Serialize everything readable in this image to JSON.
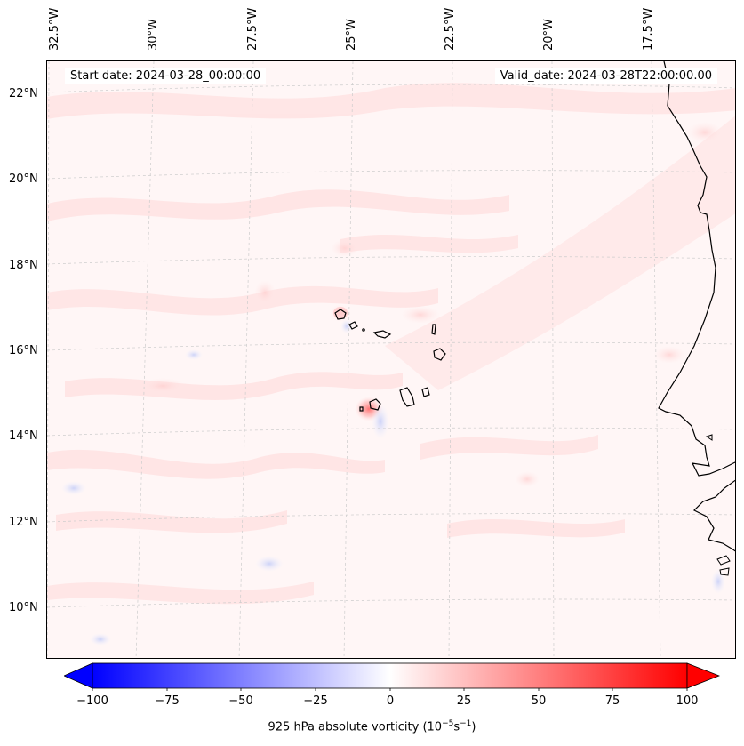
{
  "header": {
    "start_date": "Start date: 2024-03-28_00:00:00",
    "valid_date": "Valid_date: 2024-03-28T22:00:00.00"
  },
  "axes": {
    "longitude_labels": [
      "32.5°W",
      "30°W",
      "27.5°W",
      "25°W",
      "22.5°W",
      "20°W",
      "17.5°W"
    ],
    "latitude_labels": [
      "22°N",
      "20°N",
      "18°N",
      "16°N",
      "14°N",
      "12°N",
      "10°N"
    ]
  },
  "colorbar": {
    "label_prefix": "925 hPa absolute vorticity (10",
    "label_exp1": "−5",
    "label_mid": "s",
    "label_exp2": "−1",
    "label_suffix": ")",
    "ticks": [
      "−100",
      "−75",
      "−50",
      "−25",
      "0",
      "25",
      "50",
      "75",
      "100"
    ],
    "min": -100,
    "max": 100,
    "negative_color": "#0000ff",
    "neutral_color": "#ffffff",
    "positive_color": "#ff0000"
  },
  "colors": {
    "background_field": "#fff6f6",
    "coastline": "#000000",
    "gridline": "#cccccc"
  }
}
